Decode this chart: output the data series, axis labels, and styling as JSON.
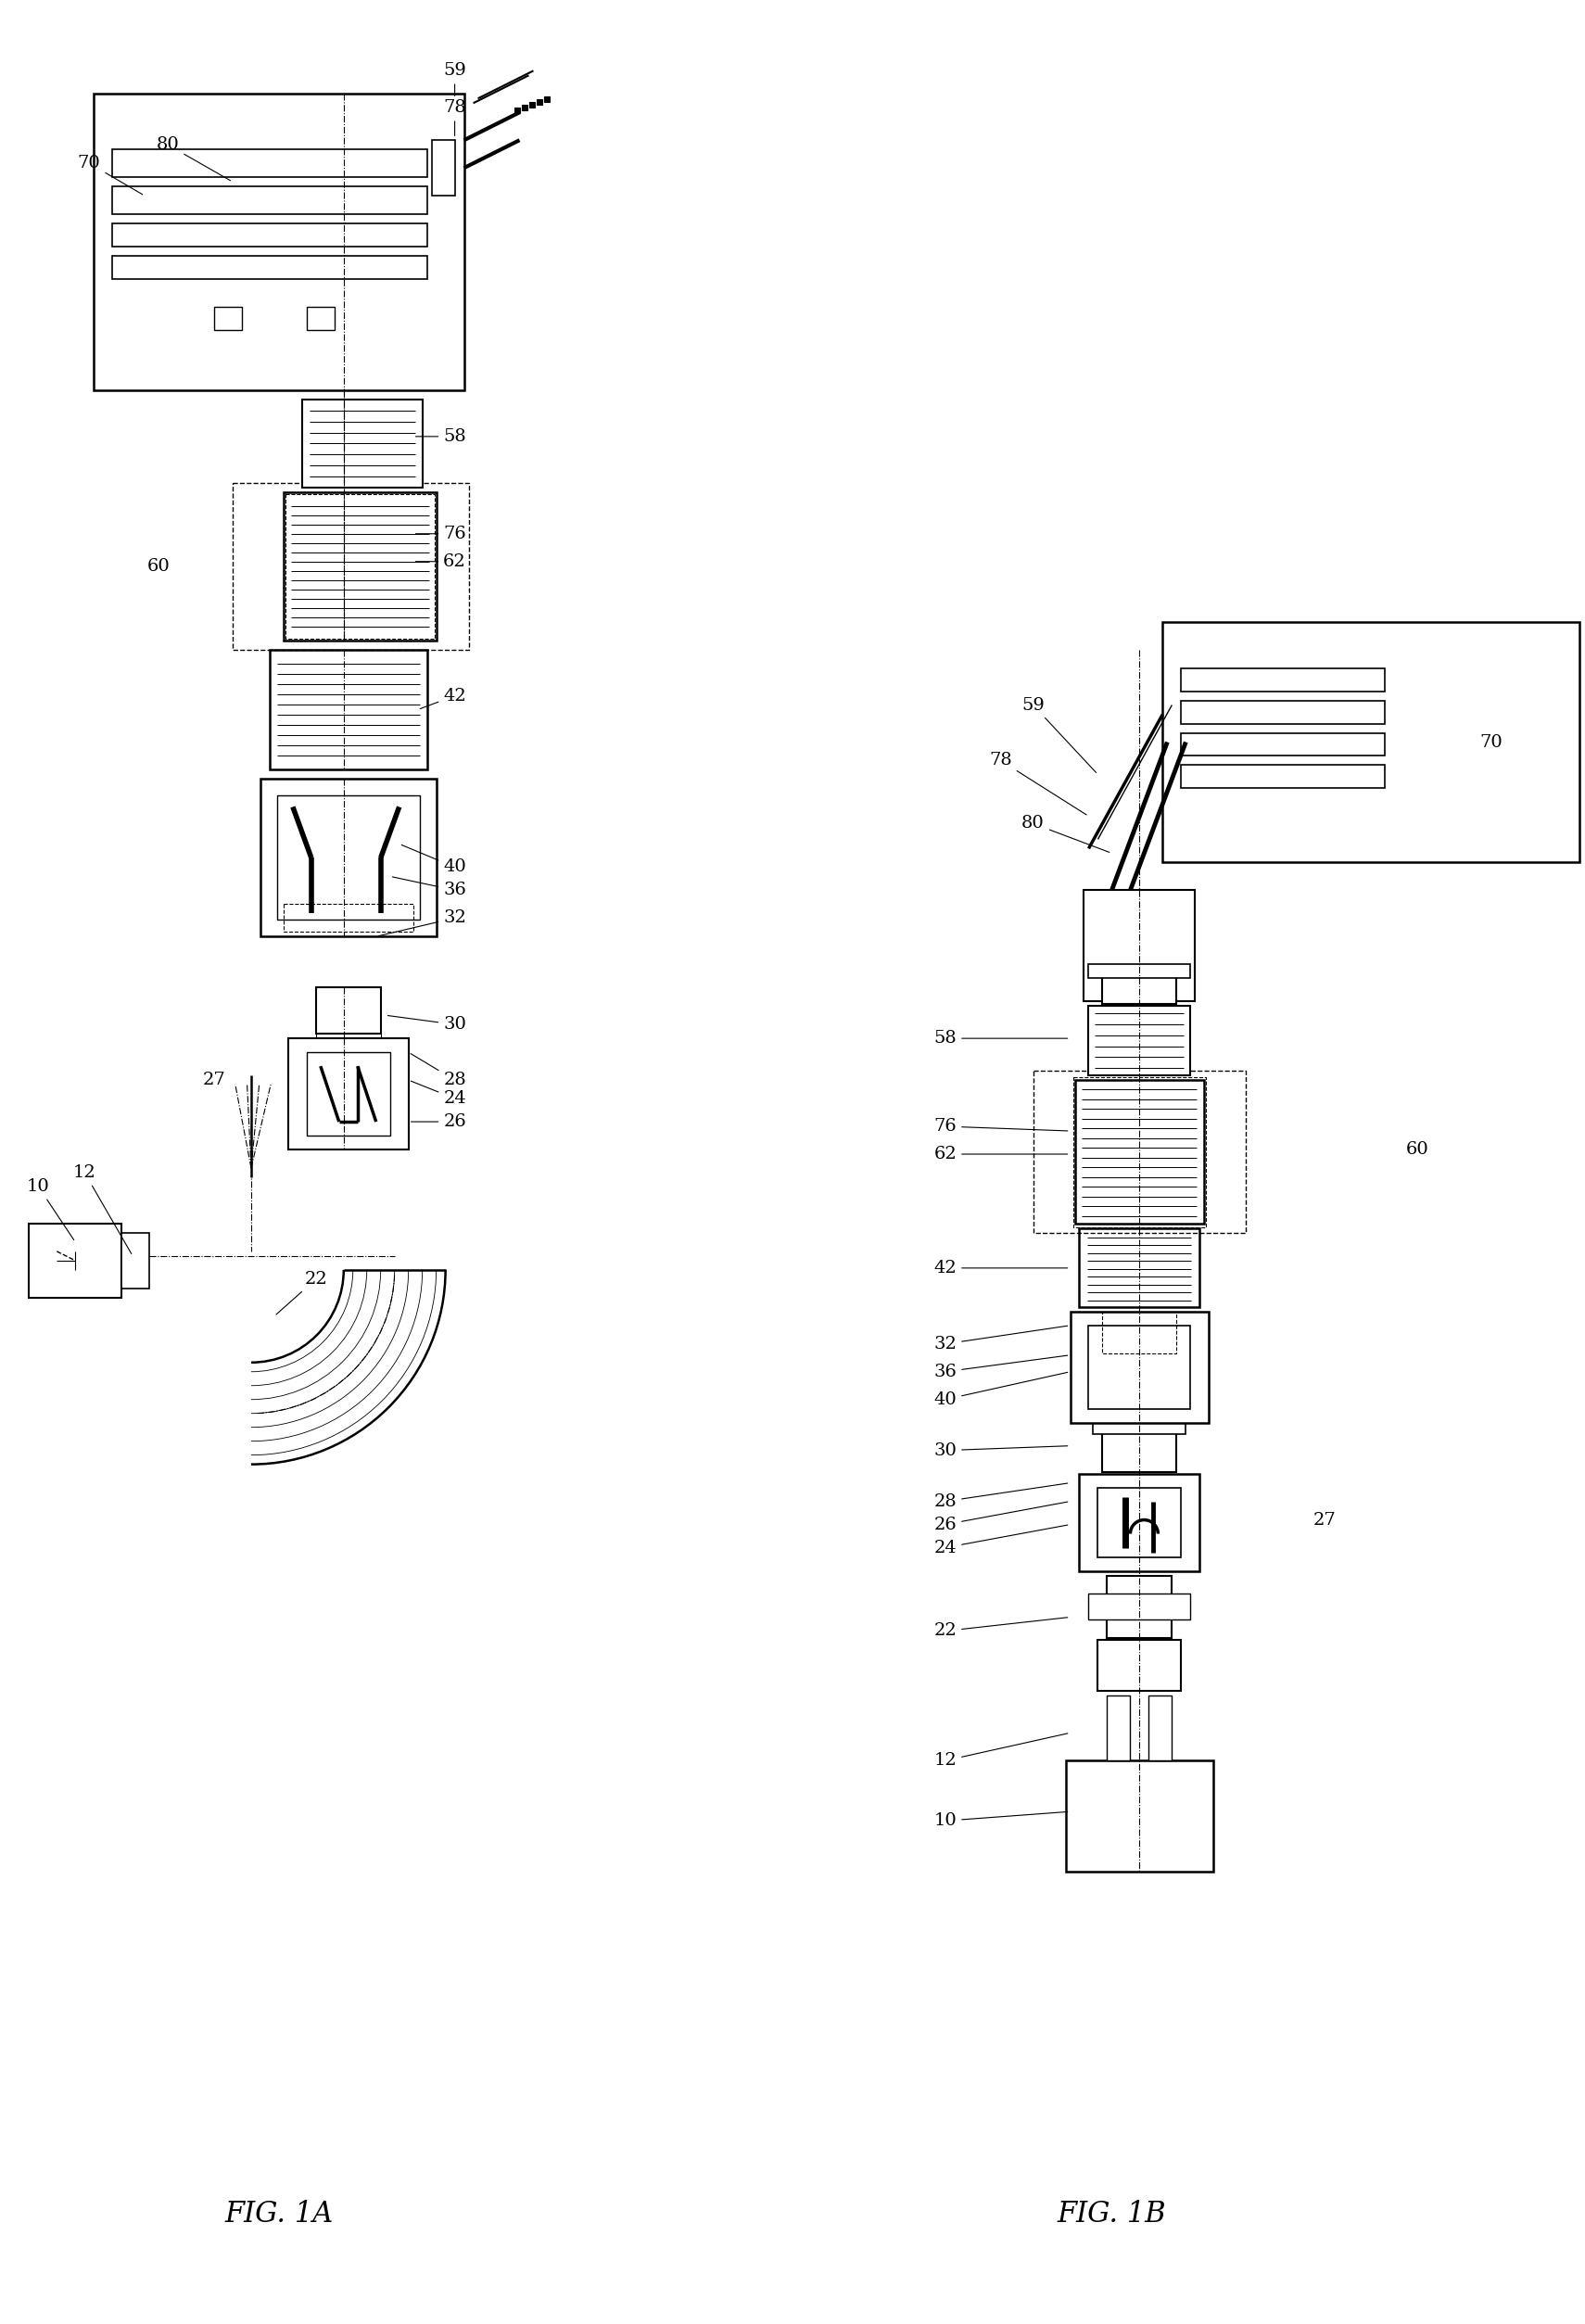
{
  "fig_width": 17.1,
  "fig_height": 25.07,
  "bg_color": "#ffffff",
  "fig1a_label": "FIG. 1A",
  "fig1b_label": "FIG. 1B"
}
